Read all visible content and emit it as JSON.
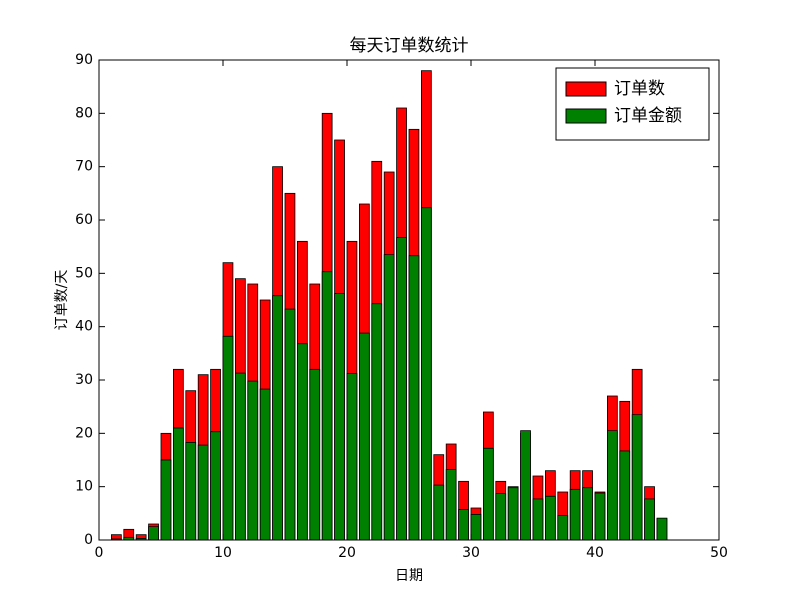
{
  "chart_data": {
    "type": "bar",
    "title": "每天订单数统计",
    "x_label": "日期",
    "y_label": "订单数/天",
    "x": [
      1,
      2,
      3,
      4,
      5,
      6,
      7,
      8,
      9,
      10,
      11,
      12,
      13,
      14,
      15,
      16,
      17,
      18,
      19,
      20,
      21,
      22,
      23,
      24,
      25,
      26,
      27,
      28,
      29,
      30,
      31,
      32,
      33,
      34,
      35,
      36,
      37,
      38,
      39,
      40,
      41,
      42,
      43,
      44,
      45
    ],
    "series": [
      {
        "name": "订单数",
        "color": "#ff0000",
        "values": [
          1,
          2,
          1,
          3,
          20,
          32,
          28,
          31,
          32,
          52,
          49,
          48,
          45,
          70,
          65,
          56,
          48,
          80,
          75,
          56,
          63,
          71,
          69,
          81,
          77,
          88,
          16,
          18,
          11,
          6,
          24,
          11,
          10,
          20,
          12,
          13,
          9,
          13,
          13,
          9,
          27,
          26,
          32,
          10,
          4
        ]
      },
      {
        "name": "订单金额",
        "color": "#008000",
        "values": [
          0.2,
          0.5,
          0.3,
          2.5,
          15,
          21,
          18.3,
          17.8,
          20.3,
          38.2,
          31.3,
          29.8,
          28.3,
          45.8,
          43.3,
          36.8,
          32,
          50.3,
          46.2,
          31.2,
          38.8,
          44.3,
          53.5,
          56.7,
          53.3,
          62.3,
          10.3,
          13.2,
          5.7,
          4.8,
          17.2,
          8.7,
          9.8,
          20.5,
          7.7,
          8.2,
          4.6,
          9.5,
          9.8,
          8.8,
          20.5,
          16.7,
          23.5,
          7.7,
          4.1
        ]
      }
    ],
    "xlim": [
      0,
      50
    ],
    "xticks": [
      0,
      10,
      20,
      30,
      40,
      50
    ],
    "ylim": [
      0,
      90
    ],
    "yticks": [
      0,
      10,
      20,
      30,
      40,
      50,
      60,
      70,
      80,
      90
    ],
    "legend": "upper right"
  }
}
